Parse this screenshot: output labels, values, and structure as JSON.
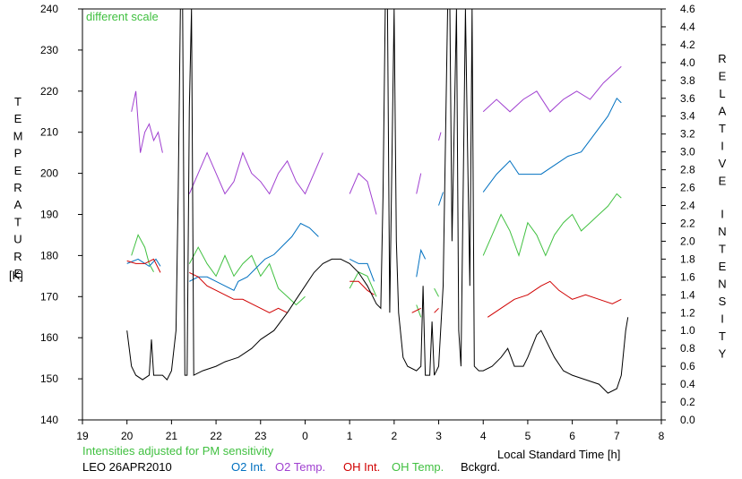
{
  "chart_data": {
    "type": "line",
    "title": "",
    "annotation_top": "different scale",
    "annotation_bottom": "Intensities adjusted for PM sensitivity",
    "station_date": "LEO 26APR2010",
    "xlabel": "Local Standard Time [h]",
    "ylabel_left": "TEMPERATURE",
    "ylabel_left_unit": "[K]",
    "ylabel_right": "RELATIVE INTENSITY",
    "xlim": [
      19,
      32
    ],
    "ylim_left": [
      140,
      240
    ],
    "ylim_right": [
      0,
      4.6
    ],
    "x_ticks": [
      19,
      20,
      21,
      22,
      23,
      24,
      25,
      26,
      27,
      28,
      29,
      30,
      31,
      32
    ],
    "x_tick_labels": [
      "19",
      "20",
      "21",
      "22",
      "23",
      "0",
      "1",
      "2",
      "3",
      "4",
      "5",
      "6",
      "7",
      "8"
    ],
    "y_left_ticks": [
      140,
      150,
      160,
      170,
      180,
      190,
      200,
      210,
      220,
      230,
      240
    ],
    "y_right_ticks": [
      "0.0",
      "0.2",
      "0.4",
      "0.6",
      "0.8",
      "1.0",
      "1.2",
      "1.4",
      "1.6",
      "1.8",
      "2.0",
      "2.2",
      "2.4",
      "2.6",
      "2.8",
      "3.0",
      "3.2",
      "3.4",
      "3.6",
      "3.8",
      "4.0",
      "4.2",
      "4.4",
      "4.6"
    ],
    "grid": false,
    "legend_placement": "bottom",
    "series": [
      {
        "name": "O2 Int.",
        "color": "#0070c0",
        "axis": "right",
        "segments": [
          [
            [
              20.0,
              1.75
            ],
            [
              20.25,
              1.8
            ],
            [
              20.5,
              1.72
            ],
            [
              20.65,
              1.8
            ],
            [
              20.75,
              1.72
            ]
          ],
          [
            [
              21.4,
              1.55
            ],
            [
              21.6,
              1.6
            ],
            [
              21.8,
              1.6
            ],
            [
              22.0,
              1.55
            ],
            [
              22.2,
              1.5
            ],
            [
              22.4,
              1.45
            ],
            [
              22.5,
              1.55
            ],
            [
              22.7,
              1.6
            ],
            [
              22.9,
              1.7
            ],
            [
              23.1,
              1.8
            ],
            [
              23.3,
              1.85
            ],
            [
              23.5,
              1.95
            ],
            [
              23.7,
              2.05
            ],
            [
              23.9,
              2.2
            ],
            [
              24.1,
              2.15
            ],
            [
              24.3,
              2.05
            ]
          ],
          [
            [
              25.0,
              1.8
            ],
            [
              25.2,
              1.75
            ],
            [
              25.4,
              1.75
            ],
            [
              25.55,
              1.55
            ]
          ],
          [
            [
              26.5,
              1.6
            ],
            [
              26.6,
              1.9
            ],
            [
              26.7,
              1.8
            ]
          ],
          [
            [
              27.0,
              2.4
            ],
            [
              27.1,
              2.55
            ]
          ],
          [
            [
              28.0,
              2.55
            ],
            [
              28.3,
              2.75
            ],
            [
              28.6,
              2.9
            ],
            [
              28.8,
              2.75
            ],
            [
              29.0,
              2.75
            ],
            [
              29.3,
              2.75
            ],
            [
              29.6,
              2.85
            ],
            [
              29.9,
              2.95
            ],
            [
              30.2,
              3.0
            ],
            [
              30.5,
              3.2
            ],
            [
              30.8,
              3.4
            ],
            [
              31.0,
              3.6
            ],
            [
              31.1,
              3.55
            ]
          ]
        ]
      },
      {
        "name": "O2 Temp.",
        "color": "#a040d0",
        "axis": "left",
        "segments": [
          [
            [
              20.1,
              215
            ],
            [
              20.2,
              220
            ],
            [
              20.3,
              205
            ],
            [
              20.4,
              210
            ],
            [
              20.5,
              212
            ],
            [
              20.6,
              208
            ],
            [
              20.7,
              210
            ],
            [
              20.8,
              205
            ]
          ],
          [
            [
              21.4,
              195
            ],
            [
              21.6,
              200
            ],
            [
              21.8,
              205
            ],
            [
              22.0,
              200
            ],
            [
              22.2,
              195
            ],
            [
              22.4,
              198
            ],
            [
              22.6,
              205
            ],
            [
              22.8,
              200
            ],
            [
              23.0,
              198
            ],
            [
              23.2,
              195
            ],
            [
              23.4,
              200
            ],
            [
              23.6,
              203
            ],
            [
              23.8,
              198
            ],
            [
              24.0,
              195
            ],
            [
              24.2,
              200
            ],
            [
              24.4,
              205
            ]
          ],
          [
            [
              25.0,
              195
            ],
            [
              25.2,
              200
            ],
            [
              25.4,
              198
            ],
            [
              25.6,
              190
            ]
          ],
          [
            [
              26.5,
              195
            ],
            [
              26.6,
              200
            ]
          ],
          [
            [
              27.0,
              208
            ],
            [
              27.05,
              210
            ]
          ],
          [
            [
              28.0,
              215
            ],
            [
              28.3,
              218
            ],
            [
              28.6,
              215
            ],
            [
              28.9,
              218
            ],
            [
              29.2,
              220
            ],
            [
              29.5,
              215
            ],
            [
              29.8,
              218
            ],
            [
              30.1,
              220
            ],
            [
              30.4,
              218
            ],
            [
              30.7,
              222
            ],
            [
              31.0,
              225
            ],
            [
              31.1,
              226
            ]
          ]
        ]
      },
      {
        "name": "OH Int.",
        "color": "#d00000",
        "axis": "right",
        "segments": [
          [
            [
              20.0,
              1.78
            ],
            [
              20.2,
              1.75
            ],
            [
              20.4,
              1.75
            ],
            [
              20.6,
              1.8
            ],
            [
              20.75,
              1.65
            ]
          ],
          [
            [
              21.4,
              1.65
            ],
            [
              21.6,
              1.6
            ],
            [
              21.8,
              1.5
            ],
            [
              22.0,
              1.45
            ],
            [
              22.2,
              1.4
            ],
            [
              22.4,
              1.35
            ],
            [
              22.6,
              1.35
            ],
            [
              22.8,
              1.3
            ],
            [
              23.0,
              1.25
            ],
            [
              23.2,
              1.2
            ],
            [
              23.4,
              1.25
            ],
            [
              23.6,
              1.2
            ]
          ],
          [
            [
              25.0,
              1.55
            ],
            [
              25.2,
              1.55
            ],
            [
              25.4,
              1.45
            ],
            [
              25.55,
              1.4
            ]
          ],
          [
            [
              26.4,
              1.2
            ],
            [
              26.6,
              1.25
            ]
          ],
          [
            [
              26.9,
              1.2
            ],
            [
              27.0,
              1.25
            ]
          ],
          [
            [
              28.1,
              1.15
            ],
            [
              28.4,
              1.25
            ],
            [
              28.7,
              1.35
            ],
            [
              29.0,
              1.4
            ],
            [
              29.3,
              1.5
            ],
            [
              29.5,
              1.55
            ],
            [
              29.7,
              1.45
            ],
            [
              30.0,
              1.35
            ],
            [
              30.3,
              1.4
            ],
            [
              30.6,
              1.35
            ],
            [
              30.9,
              1.3
            ],
            [
              31.1,
              1.35
            ]
          ]
        ]
      },
      {
        "name": "OH Temp.",
        "color": "#40c040",
        "axis": "left",
        "segments": [
          [
            [
              20.1,
              180
            ],
            [
              20.25,
              185
            ],
            [
              20.4,
              182
            ],
            [
              20.5,
              178
            ],
            [
              20.6,
              176
            ]
          ],
          [
            [
              21.4,
              178
            ],
            [
              21.6,
              182
            ],
            [
              21.8,
              178
            ],
            [
              22.0,
              175
            ],
            [
              22.2,
              180
            ],
            [
              22.4,
              175
            ],
            [
              22.6,
              178
            ],
            [
              22.8,
              180
            ],
            [
              23.0,
              175
            ],
            [
              23.2,
              178
            ],
            [
              23.4,
              172
            ],
            [
              23.6,
              170
            ],
            [
              23.8,
              168
            ],
            [
              24.0,
              170
            ]
          ],
          [
            [
              25.0,
              172
            ],
            [
              25.2,
              176
            ],
            [
              25.4,
              175
            ],
            [
              25.6,
              170
            ]
          ],
          [
            [
              26.5,
              168
            ],
            [
              26.6,
              165
            ]
          ],
          [
            [
              26.9,
              172
            ],
            [
              27.0,
              170
            ]
          ],
          [
            [
              28.0,
              180
            ],
            [
              28.2,
              185
            ],
            [
              28.4,
              190
            ],
            [
              28.6,
              186
            ],
            [
              28.8,
              180
            ],
            [
              29.0,
              188
            ],
            [
              29.2,
              185
            ],
            [
              29.4,
              180
            ],
            [
              29.6,
              185
            ],
            [
              29.8,
              188
            ],
            [
              30.0,
              190
            ],
            [
              30.2,
              186
            ],
            [
              30.4,
              188
            ],
            [
              30.6,
              190
            ],
            [
              30.8,
              192
            ],
            [
              31.0,
              195
            ],
            [
              31.1,
              194
            ]
          ]
        ]
      },
      {
        "name": "Bckgrd.",
        "color": "#000000",
        "axis": "right",
        "points": [
          [
            20.0,
            1.0
          ],
          [
            20.1,
            0.6
          ],
          [
            20.2,
            0.5
          ],
          [
            20.35,
            0.45
          ],
          [
            20.5,
            0.5
          ],
          [
            20.55,
            0.9
          ],
          [
            20.6,
            0.5
          ],
          [
            20.8,
            0.5
          ],
          [
            20.9,
            0.45
          ],
          [
            21.0,
            0.55
          ],
          [
            21.1,
            1.0
          ],
          [
            21.15,
            2.5
          ],
          [
            21.2,
            4.6
          ],
          [
            21.25,
            4.6
          ],
          [
            21.3,
            0.5
          ],
          [
            21.35,
            0.5
          ],
          [
            21.4,
            3.5
          ],
          [
            21.45,
            4.6
          ],
          [
            21.5,
            0.5
          ],
          [
            21.7,
            0.55
          ],
          [
            22.0,
            0.6
          ],
          [
            22.2,
            0.65
          ],
          [
            22.5,
            0.7
          ],
          [
            22.8,
            0.8
          ],
          [
            23.0,
            0.9
          ],
          [
            23.3,
            1.0
          ],
          [
            23.6,
            1.2
          ],
          [
            23.8,
            1.35
          ],
          [
            24.0,
            1.5
          ],
          [
            24.2,
            1.65
          ],
          [
            24.4,
            1.75
          ],
          [
            24.6,
            1.8
          ],
          [
            24.8,
            1.8
          ],
          [
            25.0,
            1.75
          ],
          [
            25.2,
            1.65
          ],
          [
            25.4,
            1.5
          ],
          [
            25.6,
            1.3
          ],
          [
            25.7,
            1.25
          ],
          [
            25.75,
            2.5
          ],
          [
            25.8,
            4.6
          ],
          [
            25.85,
            4.6
          ],
          [
            25.9,
            1.2
          ],
          [
            26.0,
            4.6
          ],
          [
            26.05,
            2.0
          ],
          [
            26.1,
            1.2
          ],
          [
            26.2,
            0.7
          ],
          [
            26.3,
            0.6
          ],
          [
            26.5,
            0.55
          ],
          [
            26.6,
            0.6
          ],
          [
            26.65,
            1.5
          ],
          [
            26.7,
            0.5
          ],
          [
            26.8,
            0.5
          ],
          [
            26.85,
            1.1
          ],
          [
            26.9,
            0.5
          ],
          [
            27.0,
            0.6
          ],
          [
            27.1,
            1.5
          ],
          [
            27.2,
            4.6
          ],
          [
            27.25,
            4.6
          ],
          [
            27.3,
            2.0
          ],
          [
            27.4,
            4.6
          ],
          [
            27.45,
            1.0
          ],
          [
            27.5,
            0.6
          ],
          [
            27.6,
            4.6
          ],
          [
            27.65,
            3.0
          ],
          [
            27.7,
            1.5
          ],
          [
            27.75,
            4.6
          ],
          [
            27.8,
            0.6
          ],
          [
            27.9,
            0.55
          ],
          [
            28.0,
            0.55
          ],
          [
            28.2,
            0.6
          ],
          [
            28.4,
            0.7
          ],
          [
            28.55,
            0.8
          ],
          [
            28.7,
            0.6
          ],
          [
            28.9,
            0.6
          ],
          [
            29.0,
            0.7
          ],
          [
            29.2,
            0.95
          ],
          [
            29.3,
            1.0
          ],
          [
            29.4,
            0.9
          ],
          [
            29.6,
            0.7
          ],
          [
            29.8,
            0.55
          ],
          [
            30.0,
            0.5
          ],
          [
            30.3,
            0.45
          ],
          [
            30.6,
            0.4
          ],
          [
            30.8,
            0.3
          ],
          [
            31.0,
            0.35
          ],
          [
            31.1,
            0.5
          ],
          [
            31.2,
            1.0
          ],
          [
            31.25,
            1.15
          ]
        ]
      }
    ]
  }
}
